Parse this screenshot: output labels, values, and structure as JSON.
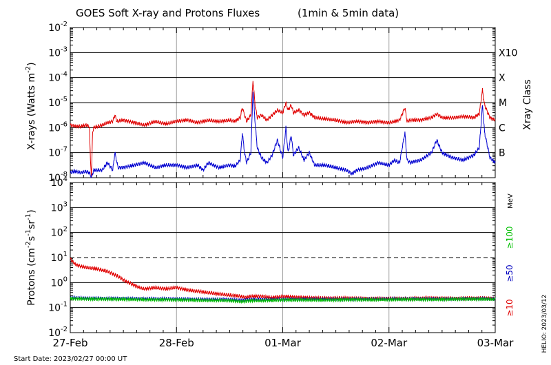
{
  "chart_data": [
    {
      "type": "line",
      "title": "GOES Soft X-ray and Protons Fluxes",
      "subtitle": "(1min & 5min data)",
      "ylabel_main": "X-rays (Watts m",
      "ylabel_exp": "-2",
      "ylabel_close": ")",
      "y_scale": "log",
      "ylim_exp": [
        -8,
        -2
      ],
      "y_ticks": [
        {
          "base": "10",
          "exp": "-8"
        },
        {
          "base": "10",
          "exp": "-7"
        },
        {
          "base": "10",
          "exp": "-6"
        },
        {
          "base": "10",
          "exp": "-5"
        },
        {
          "base": "10",
          "exp": "-4"
        },
        {
          "base": "10",
          "exp": "-3"
        },
        {
          "base": "10",
          "exp": "-2"
        }
      ],
      "right_axis_title": "Xray Class",
      "xray_classes": [
        {
          "label": "B",
          "exp": -7
        },
        {
          "label": "C",
          "exp": -6
        },
        {
          "label": "M",
          "exp": -5
        },
        {
          "label": "X",
          "exp": -4
        },
        {
          "label": "X10",
          "exp": -3
        }
      ],
      "x_days_range": [
        0,
        4
      ],
      "series": [
        {
          "color": "#e00000",
          "points": [
            [
              0.0,
              -5.9
            ],
            [
              0.05,
              -5.95
            ],
            [
              0.1,
              -5.95
            ],
            [
              0.15,
              -5.9
            ],
            [
              0.18,
              -5.95
            ],
            [
              0.19,
              -7.3
            ],
            [
              0.2,
              -8.0
            ],
            [
              0.21,
              -6.2
            ],
            [
              0.22,
              -6.0
            ],
            [
              0.3,
              -5.9
            ],
            [
              0.35,
              -5.8
            ],
            [
              0.4,
              -5.75
            ],
            [
              0.42,
              -5.5
            ],
            [
              0.44,
              -5.75
            ],
            [
              0.5,
              -5.7
            ],
            [
              0.6,
              -5.8
            ],
            [
              0.7,
              -5.9
            ],
            [
              0.8,
              -5.75
            ],
            [
              0.9,
              -5.85
            ],
            [
              1.0,
              -5.75
            ],
            [
              1.1,
              -5.7
            ],
            [
              1.2,
              -5.8
            ],
            [
              1.3,
              -5.7
            ],
            [
              1.4,
              -5.75
            ],
            [
              1.5,
              -5.7
            ],
            [
              1.55,
              -5.75
            ],
            [
              1.6,
              -5.6
            ],
            [
              1.62,
              -5.2
            ],
            [
              1.64,
              -5.5
            ],
            [
              1.66,
              -5.75
            ],
            [
              1.7,
              -5.5
            ],
            [
              1.72,
              -4.1
            ],
            [
              1.74,
              -5.1
            ],
            [
              1.76,
              -5.6
            ],
            [
              1.8,
              -5.5
            ],
            [
              1.85,
              -5.7
            ],
            [
              1.9,
              -5.5
            ],
            [
              1.95,
              -5.3
            ],
            [
              2.0,
              -5.4
            ],
            [
              2.03,
              -5.0
            ],
            [
              2.05,
              -5.3
            ],
            [
              2.08,
              -5.1
            ],
            [
              2.1,
              -5.4
            ],
            [
              2.15,
              -5.3
            ],
            [
              2.2,
              -5.5
            ],
            [
              2.25,
              -5.4
            ],
            [
              2.3,
              -5.6
            ],
            [
              2.4,
              -5.65
            ],
            [
              2.5,
              -5.7
            ],
            [
              2.6,
              -5.8
            ],
            [
              2.7,
              -5.75
            ],
            [
              2.8,
              -5.8
            ],
            [
              2.9,
              -5.75
            ],
            [
              3.0,
              -5.8
            ],
            [
              3.05,
              -5.75
            ],
            [
              3.1,
              -5.7
            ],
            [
              3.15,
              -5.2
            ],
            [
              3.17,
              -5.75
            ],
            [
              3.2,
              -5.7
            ],
            [
              3.3,
              -5.7
            ],
            [
              3.4,
              -5.6
            ],
            [
              3.45,
              -5.45
            ],
            [
              3.5,
              -5.6
            ],
            [
              3.6,
              -5.6
            ],
            [
              3.7,
              -5.55
            ],
            [
              3.8,
              -5.6
            ],
            [
              3.85,
              -5.45
            ],
            [
              3.88,
              -4.5
            ],
            [
              3.9,
              -5.1
            ],
            [
              3.95,
              -5.6
            ],
            [
              4.0,
              -5.7
            ]
          ]
        },
        {
          "color": "#0000d0",
          "points": [
            [
              0.0,
              -7.8
            ],
            [
              0.05,
              -7.75
            ],
            [
              0.1,
              -7.8
            ],
            [
              0.15,
              -7.75
            ],
            [
              0.18,
              -7.8
            ],
            [
              0.2,
              -8.0
            ],
            [
              0.22,
              -7.7
            ],
            [
              0.3,
              -7.7
            ],
            [
              0.35,
              -7.4
            ],
            [
              0.4,
              -7.7
            ],
            [
              0.42,
              -7.0
            ],
            [
              0.45,
              -7.6
            ],
            [
              0.5,
              -7.6
            ],
            [
              0.6,
              -7.5
            ],
            [
              0.7,
              -7.4
            ],
            [
              0.8,
              -7.6
            ],
            [
              0.9,
              -7.5
            ],
            [
              1.0,
              -7.5
            ],
            [
              1.1,
              -7.6
            ],
            [
              1.2,
              -7.5
            ],
            [
              1.25,
              -7.7
            ],
            [
              1.3,
              -7.4
            ],
            [
              1.4,
              -7.6
            ],
            [
              1.5,
              -7.5
            ],
            [
              1.55,
              -7.55
            ],
            [
              1.6,
              -7.3
            ],
            [
              1.62,
              -6.2
            ],
            [
              1.64,
              -7.0
            ],
            [
              1.66,
              -7.4
            ],
            [
              1.7,
              -7.0
            ],
            [
              1.72,
              -4.5
            ],
            [
              1.74,
              -5.8
            ],
            [
              1.76,
              -6.8
            ],
            [
              1.8,
              -7.2
            ],
            [
              1.85,
              -7.4
            ],
            [
              1.9,
              -7.1
            ],
            [
              1.95,
              -6.5
            ],
            [
              2.0,
              -7.2
            ],
            [
              2.03,
              -6.0
            ],
            [
              2.05,
              -7.0
            ],
            [
              2.08,
              -6.3
            ],
            [
              2.1,
              -7.1
            ],
            [
              2.15,
              -6.8
            ],
            [
              2.2,
              -7.3
            ],
            [
              2.25,
              -7.0
            ],
            [
              2.3,
              -7.5
            ],
            [
              2.4,
              -7.5
            ],
            [
              2.5,
              -7.6
            ],
            [
              2.6,
              -7.7
            ],
            [
              2.65,
              -7.85
            ],
            [
              2.7,
              -7.7
            ],
            [
              2.8,
              -7.6
            ],
            [
              2.9,
              -7.4
            ],
            [
              3.0,
              -7.5
            ],
            [
              3.05,
              -7.3
            ],
            [
              3.1,
              -7.4
            ],
            [
              3.15,
              -6.2
            ],
            [
              3.17,
              -7.3
            ],
            [
              3.2,
              -7.4
            ],
            [
              3.3,
              -7.3
            ],
            [
              3.4,
              -7.0
            ],
            [
              3.45,
              -6.5
            ],
            [
              3.5,
              -7.0
            ],
            [
              3.6,
              -7.2
            ],
            [
              3.7,
              -7.3
            ],
            [
              3.8,
              -7.1
            ],
            [
              3.85,
              -6.8
            ],
            [
              3.88,
              -5.1
            ],
            [
              3.9,
              -6.2
            ],
            [
              3.95,
              -7.2
            ],
            [
              4.0,
              -7.4
            ]
          ]
        }
      ]
    },
    {
      "type": "line",
      "ylabel_main": "Protons (cm",
      "ylabel_exp1": "-2",
      "ylabel_mid1": "s",
      "ylabel_exp2": "-1",
      "ylabel_mid2": "sr",
      "ylabel_exp3": "-1",
      "ylabel_close": ")",
      "y_scale": "log",
      "ylim_exp": [
        -2,
        4
      ],
      "y_ticks": [
        {
          "base": "10",
          "exp": "-2"
        },
        {
          "base": "10",
          "exp": "-1"
        },
        {
          "base": "10",
          "exp": "0"
        },
        {
          "base": "10",
          "exp": "1"
        },
        {
          "base": "10",
          "exp": "2"
        },
        {
          "base": "10",
          "exp": "3"
        },
        {
          "base": "10",
          "exp": "4"
        }
      ],
      "threshold_exp": 1,
      "right_labels": {
        "mev": "MeV",
        "p100": "≥100",
        "p50": "≥50",
        "p10": "≥10"
      },
      "x_days_range": [
        0,
        4
      ],
      "series": [
        {
          "color": "#e00000",
          "points": [
            [
              0.0,
              0.95
            ],
            [
              0.03,
              0.8
            ],
            [
              0.06,
              0.7
            ],
            [
              0.1,
              0.65
            ],
            [
              0.15,
              0.6
            ],
            [
              0.2,
              0.58
            ],
            [
              0.25,
              0.55
            ],
            [
              0.3,
              0.5
            ],
            [
              0.35,
              0.45
            ],
            [
              0.4,
              0.35
            ],
            [
              0.45,
              0.25
            ],
            [
              0.5,
              0.1
            ],
            [
              0.55,
              0.0
            ],
            [
              0.6,
              -0.1
            ],
            [
              0.65,
              -0.2
            ],
            [
              0.7,
              -0.25
            ],
            [
              0.8,
              -0.2
            ],
            [
              0.9,
              -0.25
            ],
            [
              1.0,
              -0.2
            ],
            [
              1.1,
              -0.3
            ],
            [
              1.2,
              -0.35
            ],
            [
              1.3,
              -0.4
            ],
            [
              1.4,
              -0.45
            ],
            [
              1.5,
              -0.5
            ],
            [
              1.6,
              -0.55
            ],
            [
              1.65,
              -0.6
            ],
            [
              1.7,
              -0.55
            ],
            [
              1.8,
              -0.55
            ],
            [
              1.9,
              -0.6
            ],
            [
              2.0,
              -0.55
            ],
            [
              2.2,
              -0.6
            ],
            [
              2.4,
              -0.62
            ],
            [
              2.6,
              -0.62
            ],
            [
              2.8,
              -0.64
            ],
            [
              3.0,
              -0.63
            ],
            [
              3.2,
              -0.64
            ],
            [
              3.4,
              -0.62
            ],
            [
              3.6,
              -0.63
            ],
            [
              3.8,
              -0.62
            ],
            [
              4.0,
              -0.63
            ]
          ]
        },
        {
          "color": "#0000c0",
          "points": [
            [
              0.0,
              -0.62
            ],
            [
              0.5,
              -0.64
            ],
            [
              1.0,
              -0.66
            ],
            [
              1.5,
              -0.68
            ],
            [
              1.6,
              -0.72
            ],
            [
              1.7,
              -0.68
            ],
            [
              2.0,
              -0.67
            ],
            [
              2.5,
              -0.67
            ],
            [
              3.0,
              -0.66
            ],
            [
              3.5,
              -0.65
            ],
            [
              4.0,
              -0.65
            ]
          ]
        },
        {
          "color": "#00c000",
          "points": [
            [
              0.0,
              -0.64
            ],
            [
              0.5,
              -0.67
            ],
            [
              1.0,
              -0.69
            ],
            [
              1.5,
              -0.72
            ],
            [
              1.6,
              -0.76
            ],
            [
              1.7,
              -0.72
            ],
            [
              2.0,
              -0.7
            ],
            [
              2.5,
              -0.69
            ],
            [
              3.0,
              -0.68
            ],
            [
              3.5,
              -0.67
            ],
            [
              4.0,
              -0.66
            ]
          ]
        }
      ],
      "x_tick_labels": [
        "27-Feb",
        "28-Feb",
        "01-Mar",
        "02-Mar",
        "03-Mar"
      ]
    }
  ],
  "footer": {
    "start_date": "Start Date: 2023/02/27 00:00 UT",
    "credit": "HELIO: 2023/03/12"
  }
}
